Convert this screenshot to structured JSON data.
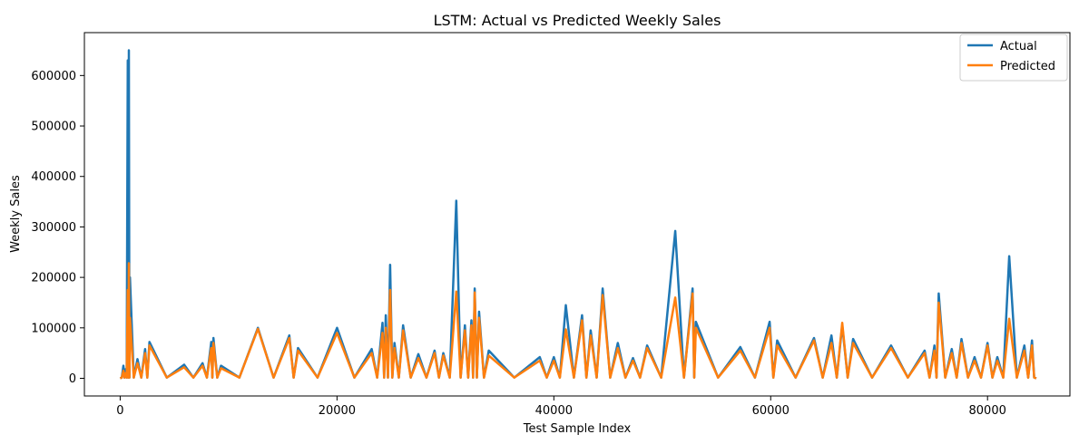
{
  "chart_data": {
    "type": "line",
    "title": "LSTM: Actual vs Predicted Weekly Sales",
    "xlabel": "Test Sample Index",
    "ylabel": "Weekly Sales",
    "xlim": [
      -3300,
      87600
    ],
    "ylim": [
      -35000,
      685000
    ],
    "xticks": [
      0,
      20000,
      40000,
      60000,
      80000
    ],
    "xtick_labels": [
      "0",
      "20000",
      "40000",
      "60000",
      "80000"
    ],
    "yticks": [
      0,
      100000,
      200000,
      300000,
      400000,
      500000,
      600000
    ],
    "ytick_labels": [
      "0",
      "100000",
      "200000",
      "300000",
      "400000",
      "500000",
      "600000"
    ],
    "grid": false,
    "legend_position": "top-right",
    "series": [
      {
        "name": "Actual",
        "color": "#1f77b4",
        "peaks": [
          [
            0,
            0
          ],
          [
            300,
            25000
          ],
          [
            500,
            18000
          ],
          [
            700,
            630000
          ],
          [
            800,
            650000
          ],
          [
            900,
            200000
          ],
          [
            1600,
            38000
          ],
          [
            2300,
            58000
          ],
          [
            2700,
            72000
          ],
          [
            5900,
            27000
          ],
          [
            7600,
            30000
          ],
          [
            8400,
            72000
          ],
          [
            8600,
            80000
          ],
          [
            9300,
            25000
          ],
          [
            12700,
            100000
          ],
          [
            15600,
            85000
          ],
          [
            16400,
            60000
          ],
          [
            20000,
            100000
          ],
          [
            23200,
            58000
          ],
          [
            24200,
            110000
          ],
          [
            24500,
            125000
          ],
          [
            24900,
            225000
          ],
          [
            25300,
            70000
          ],
          [
            26100,
            105000
          ],
          [
            27500,
            48000
          ],
          [
            29000,
            55000
          ],
          [
            29800,
            50000
          ],
          [
            31000,
            352000
          ],
          [
            31800,
            105000
          ],
          [
            32400,
            115000
          ],
          [
            32700,
            178000
          ],
          [
            33100,
            132000
          ],
          [
            34000,
            55000
          ],
          [
            38700,
            42000
          ],
          [
            40000,
            42000
          ],
          [
            41100,
            145000
          ],
          [
            42600,
            125000
          ],
          [
            43400,
            95000
          ],
          [
            44500,
            178000
          ],
          [
            45900,
            70000
          ],
          [
            47300,
            40000
          ],
          [
            48600,
            65000
          ],
          [
            51200,
            292000
          ],
          [
            52800,
            178000
          ],
          [
            53100,
            112000
          ],
          [
            57200,
            62000
          ],
          [
            59900,
            112000
          ],
          [
            60600,
            75000
          ],
          [
            64000,
            80000
          ],
          [
            65600,
            85000
          ],
          [
            66600,
            105000
          ],
          [
            67600,
            78000
          ],
          [
            71100,
            65000
          ],
          [
            74200,
            55000
          ],
          [
            75100,
            65000
          ],
          [
            75500,
            168000
          ],
          [
            76700,
            58000
          ],
          [
            77600,
            78000
          ],
          [
            78800,
            42000
          ],
          [
            80000,
            70000
          ],
          [
            80900,
            42000
          ],
          [
            82000,
            242000
          ],
          [
            83400,
            65000
          ],
          [
            84100,
            75000
          ],
          [
            84500,
            0
          ]
        ]
      },
      {
        "name": "Predicted",
        "color": "#ff7f0e",
        "peaks": [
          [
            0,
            0
          ],
          [
            300,
            15000
          ],
          [
            500,
            10000
          ],
          [
            700,
            175000
          ],
          [
            800,
            228000
          ],
          [
            900,
            120000
          ],
          [
            1600,
            30000
          ],
          [
            2300,
            50000
          ],
          [
            2700,
            65000
          ],
          [
            5900,
            22000
          ],
          [
            7600,
            25000
          ],
          [
            8400,
            60000
          ],
          [
            8600,
            70000
          ],
          [
            9300,
            20000
          ],
          [
            12700,
            98000
          ],
          [
            15600,
            80000
          ],
          [
            16400,
            55000
          ],
          [
            20000,
            90000
          ],
          [
            23200,
            50000
          ],
          [
            24200,
            90000
          ],
          [
            24500,
            100000
          ],
          [
            24900,
            175000
          ],
          [
            25300,
            60000
          ],
          [
            26100,
            95000
          ],
          [
            27500,
            40000
          ],
          [
            29000,
            50000
          ],
          [
            29800,
            45000
          ],
          [
            31000,
            172000
          ],
          [
            31800,
            95000
          ],
          [
            32400,
            105000
          ],
          [
            32700,
            170000
          ],
          [
            33100,
            120000
          ],
          [
            34000,
            45000
          ],
          [
            38700,
            35000
          ],
          [
            40000,
            35000
          ],
          [
            41100,
            97000
          ],
          [
            42600,
            115000
          ],
          [
            43400,
            85000
          ],
          [
            44500,
            165000
          ],
          [
            45900,
            60000
          ],
          [
            47300,
            35000
          ],
          [
            48600,
            60000
          ],
          [
            51200,
            160000
          ],
          [
            52800,
            168000
          ],
          [
            53100,
            100000
          ],
          [
            57200,
            55000
          ],
          [
            59900,
            100000
          ],
          [
            60600,
            65000
          ],
          [
            64000,
            75000
          ],
          [
            65600,
            70000
          ],
          [
            66600,
            110000
          ],
          [
            67600,
            70000
          ],
          [
            71100,
            60000
          ],
          [
            74200,
            50000
          ],
          [
            75100,
            55000
          ],
          [
            75500,
            150000
          ],
          [
            76700,
            50000
          ],
          [
            77600,
            70000
          ],
          [
            78800,
            35000
          ],
          [
            80000,
            65000
          ],
          [
            80900,
            35000
          ],
          [
            82000,
            118000
          ],
          [
            83400,
            55000
          ],
          [
            84100,
            65000
          ],
          [
            84500,
            0
          ]
        ]
      }
    ]
  }
}
